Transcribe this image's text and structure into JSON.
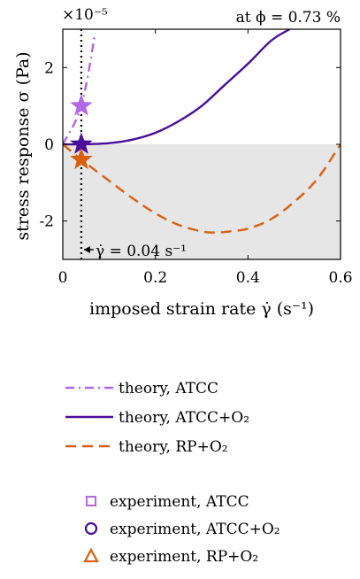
{
  "chart_data": {
    "type": "line",
    "xlabel": "imposed strain rate  γ̇  (s⁻¹)",
    "ylabel": "stress response  σ  (Pa)",
    "xlim": [
      0,
      0.6
    ],
    "ylim": [
      -3,
      3
    ],
    "xticks": [
      0,
      0.2,
      0.4,
      0.6
    ],
    "xtick_labels": [
      "0",
      "0.2",
      "0.4",
      "0.6"
    ],
    "yticks": [
      -2,
      0,
      2
    ],
    "ytick_labels": [
      "-2",
      "0",
      "2"
    ],
    "y_multiplier": "×10⁻⁵",
    "grid": false,
    "shaded_region": {
      "y_from": -3,
      "y_to": 0,
      "color": "#e6e6e6"
    },
    "annotations": {
      "top_right": "at ϕ = 0.73 %",
      "vline_label": "γ̇ = 0.04 s⁻¹",
      "vline_x": 0.04
    },
    "series": [
      {
        "name": "theory, ATCC",
        "style": "dashdot",
        "color": "#b366e6",
        "x": [
          0,
          0.04,
          0.07
        ],
        "y": [
          0,
          1.0,
          2.9
        ]
      },
      {
        "name": "theory, ATCC+O₂",
        "style": "solid",
        "color": "#4a0d99",
        "x": [
          0,
          0.04,
          0.1,
          0.15,
          0.2,
          0.25,
          0.3,
          0.35,
          0.4,
          0.45,
          0.49
        ],
        "y": [
          0,
          0.0,
          0.03,
          0.12,
          0.3,
          0.6,
          1.0,
          1.55,
          2.1,
          2.7,
          3.0
        ]
      },
      {
        "name": "theory, RP+O₂",
        "style": "dashed",
        "color": "#d95f0e",
        "x": [
          0,
          0.04,
          0.1,
          0.15,
          0.2,
          0.25,
          0.3,
          0.33,
          0.36,
          0.4,
          0.45,
          0.5,
          0.55,
          0.6
        ],
        "y": [
          0,
          -0.4,
          -0.95,
          -1.4,
          -1.8,
          -2.1,
          -2.27,
          -2.3,
          -2.27,
          -2.2,
          -1.95,
          -1.5,
          -0.9,
          0
        ]
      }
    ],
    "markers": [
      {
        "series": "theory, ATCC",
        "x": 0.04,
        "y": 1.0,
        "color": "#b366e6"
      },
      {
        "series": "theory, ATCC+O₂",
        "x": 0.04,
        "y": 0.0,
        "color": "#4a0d99"
      },
      {
        "series": "theory, RP+O₂",
        "x": 0.04,
        "y": -0.4,
        "color": "#d95f0e"
      }
    ],
    "legend_theory": [
      {
        "label": "theory, ATCC",
        "style": "dashdot",
        "color": "#b366e6"
      },
      {
        "label": "theory, ATCC+O₂",
        "style": "solid",
        "color": "#4a0d99"
      },
      {
        "label": "theory, RP+O₂",
        "style": "dashed",
        "color": "#d95f0e"
      }
    ],
    "legend_experiment": [
      {
        "label": "experiment, ATCC",
        "marker": "square",
        "color": "#b366e6"
      },
      {
        "label": "experiment, ATCC+O₂",
        "marker": "circle",
        "color": "#4a0d99"
      },
      {
        "label": "experiment, RP+O₂",
        "marker": "triangle",
        "color": "#d95f0e"
      }
    ]
  }
}
